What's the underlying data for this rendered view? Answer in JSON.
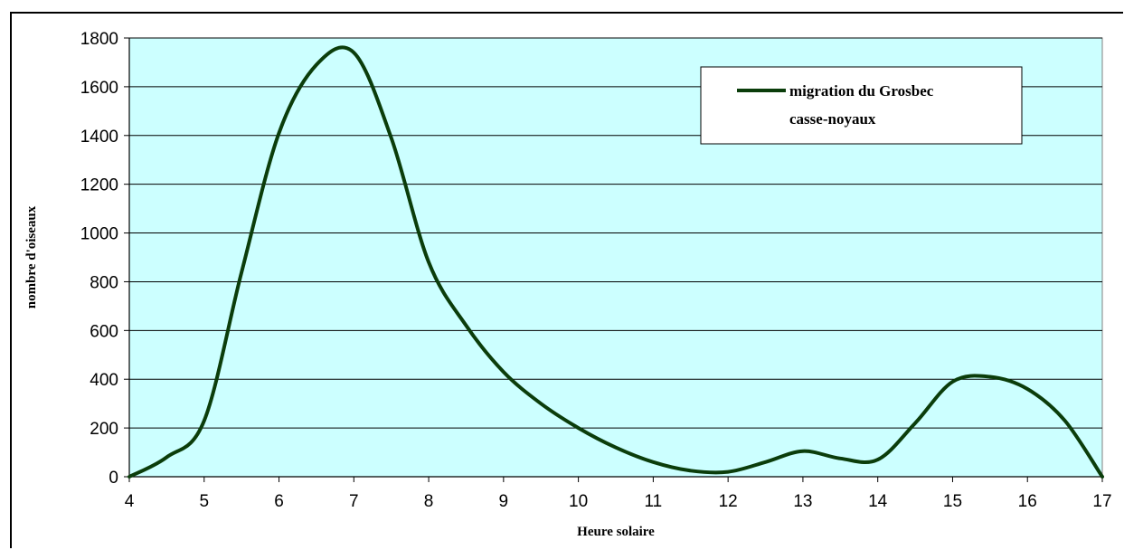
{
  "chart_data": {
    "type": "line",
    "title": "",
    "xlabel": "Heure solaire",
    "ylabel": "nombre d'oiseaux",
    "xlim": [
      4,
      17
    ],
    "ylim": [
      0,
      1800
    ],
    "xticks": [
      "4",
      "5",
      "6",
      "7",
      "8",
      "9",
      "10",
      "11",
      "12",
      "13",
      "14",
      "15",
      "16",
      "17"
    ],
    "yticks": [
      "0",
      "200",
      "400",
      "600",
      "800",
      "1000",
      "1200",
      "1400",
      "1600",
      "1800"
    ],
    "grid": "horizontal",
    "legend_position": "top-right",
    "series": [
      {
        "name": "migration du Grosbec casse-noyaux",
        "legend_lines": [
          "migration du Grosbec",
          "casse-noyaux"
        ],
        "color": "#0b3d0b",
        "x": [
          4,
          4.5,
          5,
          5.5,
          6,
          6.5,
          7,
          7.5,
          8,
          8.5,
          9,
          9.5,
          10,
          10.5,
          11,
          11.5,
          12,
          12.5,
          13,
          13.5,
          14,
          14.5,
          15,
          15.5,
          16,
          16.5,
          17
        ],
        "y": [
          0,
          80,
          230,
          840,
          1410,
          1690,
          1740,
          1390,
          880,
          620,
          430,
          300,
          200,
          120,
          60,
          25,
          20,
          60,
          105,
          75,
          70,
          220,
          390,
          410,
          360,
          230,
          0
        ]
      }
    ]
  },
  "colors": {
    "plot_background": "#ccffff",
    "gridline": "#000000",
    "line": "#0b3d0b"
  }
}
